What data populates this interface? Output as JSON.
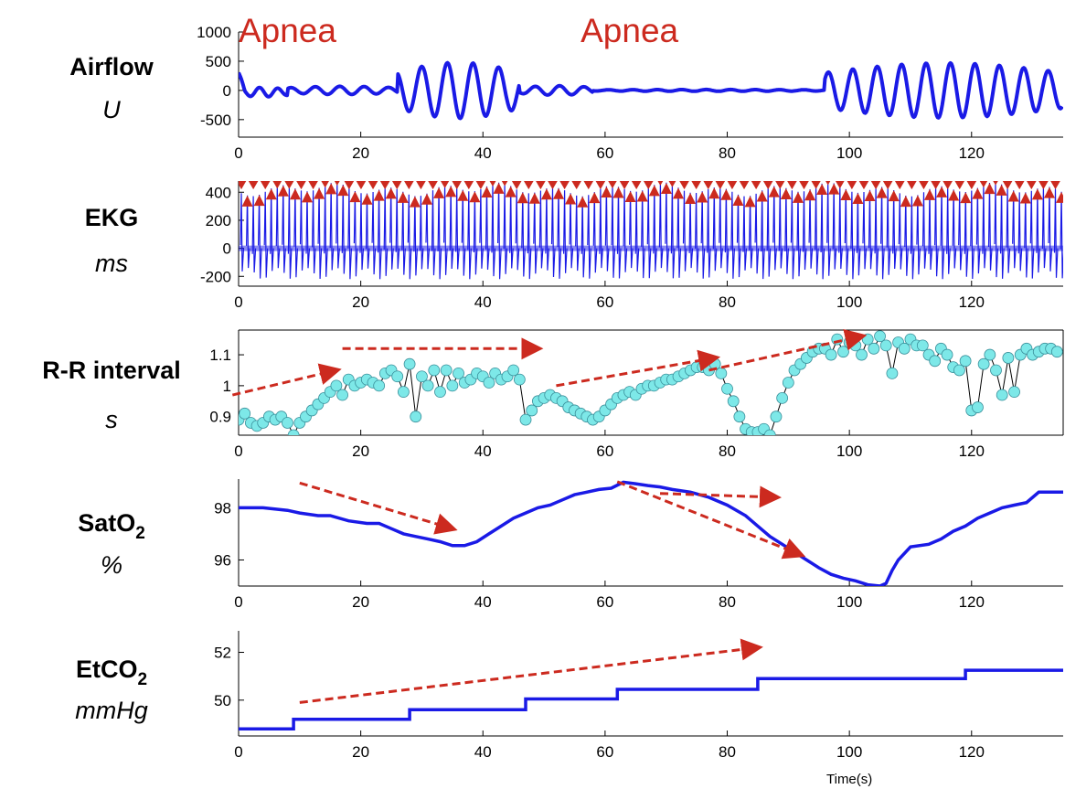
{
  "annotations": [
    {
      "text": "Apnea",
      "x": 8
    },
    {
      "text": "Apnea",
      "x": 64
    }
  ],
  "colors": {
    "signal": "#1a1ae6",
    "trend": "#cc2a1f",
    "marker": "#cc2a1f",
    "point_fill": "#7de8e8",
    "axis": "#000000"
  },
  "chart_data": [
    {
      "type": "line",
      "title": "",
      "label": "Airflow",
      "unit": "U",
      "xlim": [
        0,
        135
      ],
      "ylim": [
        -800,
        1000
      ],
      "xticks": [
        "0",
        "20",
        "40",
        "60",
        "80",
        "100",
        "120"
      ],
      "yticks": [
        "1000",
        "500",
        "0",
        "-500"
      ],
      "ytick_values": [
        1000,
        500,
        0,
        -500
      ],
      "series": [
        {
          "segments": [
            {
              "x": [
                0,
                8
              ],
              "amp": 80,
              "period": 3.0,
              "offset": -30
            },
            {
              "x": [
                8,
                26
              ],
              "amp": 70,
              "period": 4.0,
              "offset": 0
            },
            {
              "x": [
                26,
                46
              ],
              "amp": 480,
              "period": 4.2,
              "offset": 0
            },
            {
              "x": [
                46,
                58
              ],
              "amp": 80,
              "period": 4.0,
              "offset": 0
            },
            {
              "x": [
                58,
                96
              ],
              "amp": 15,
              "period": 4.0,
              "offset": 0
            },
            {
              "x": [
                96,
                135
              ],
              "amp": 470,
              "period": 4.0,
              "offset": 0
            }
          ]
        }
      ],
      "trend_arrows": []
    },
    {
      "type": "line",
      "title": "",
      "label": "EKG",
      "unit": "ms",
      "xlim": [
        0,
        135
      ],
      "ylim": [
        -270,
        480
      ],
      "xticks": [
        "0",
        "20",
        "40",
        "60",
        "80",
        "100",
        "120"
      ],
      "yticks": [
        "400",
        "200",
        "0",
        "-200"
      ],
      "ytick_values": [
        400,
        200,
        0,
        -200
      ],
      "series": [
        {
          "r_peak": 420,
          "baseline": 0,
          "trough": -180,
          "beat_interval": 0.98
        }
      ],
      "markers": {
        "up": 380,
        "down": 460
      },
      "trend_arrows": []
    },
    {
      "type": "scatter",
      "title": "",
      "label": "R-R interval",
      "unit": "s",
      "xlim": [
        0,
        135
      ],
      "ylim": [
        0.84,
        1.18
      ],
      "xticks": [
        "0",
        "20",
        "40",
        "60",
        "80",
        "100",
        "120"
      ],
      "yticks": [
        "1.1",
        "1",
        "0.9"
      ],
      "ytick_values": [
        1.1,
        1.0,
        0.9
      ],
      "series": [
        {
          "x": [
            0,
            1,
            2,
            3,
            4,
            5,
            6,
            7,
            8,
            9,
            10,
            11,
            12,
            13,
            14,
            15,
            16,
            17,
            18,
            19,
            20,
            21,
            22,
            23,
            24,
            25,
            26,
            27,
            28,
            29,
            30,
            31,
            32,
            33,
            34,
            35,
            36,
            37,
            38,
            39,
            40,
            41,
            42,
            43,
            44,
            45,
            46,
            47,
            48,
            49,
            50,
            51,
            52,
            53,
            54,
            55,
            56,
            57,
            58,
            59,
            60,
            61,
            62,
            63,
            64,
            65,
            66,
            67,
            68,
            69,
            70,
            71,
            72,
            73,
            74,
            75,
            76,
            77,
            78,
            79,
            80,
            81,
            82,
            83,
            84,
            85,
            86,
            87,
            88,
            89,
            90,
            91,
            92,
            93,
            94,
            95,
            96,
            97,
            98,
            99,
            100,
            101,
            102,
            103,
            104,
            105,
            106,
            107,
            108,
            109,
            110,
            111,
            112,
            113,
            114,
            115,
            116,
            117,
            118,
            119,
            120,
            121,
            122,
            123,
            124,
            125,
            126,
            127,
            128,
            129,
            130,
            131,
            132,
            133,
            134
          ],
          "y": [
            0.89,
            0.91,
            0.88,
            0.87,
            0.88,
            0.9,
            0.89,
            0.9,
            0.88,
            0.84,
            0.88,
            0.9,
            0.92,
            0.94,
            0.96,
            0.98,
            1.0,
            0.97,
            1.02,
            1.0,
            1.01,
            1.02,
            1.01,
            1.0,
            1.04,
            1.05,
            1.03,
            0.98,
            1.07,
            0.9,
            1.03,
            1.0,
            1.05,
            0.98,
            1.05,
            1.0,
            1.04,
            1.01,
            1.02,
            1.04,
            1.03,
            1.01,
            1.04,
            1.02,
            1.03,
            1.05,
            1.02,
            0.89,
            0.92,
            0.95,
            0.96,
            0.97,
            0.96,
            0.95,
            0.93,
            0.92,
            0.91,
            0.9,
            0.89,
            0.9,
            0.92,
            0.94,
            0.96,
            0.97,
            0.98,
            0.97,
            0.99,
            1.0,
            1.0,
            1.01,
            1.02,
            1.02,
            1.03,
            1.04,
            1.05,
            1.06,
            1.06,
            1.05,
            1.07,
            1.04,
            0.99,
            0.95,
            0.9,
            0.86,
            0.85,
            0.85,
            0.86,
            0.84,
            0.9,
            0.96,
            1.01,
            1.05,
            1.07,
            1.09,
            1.11,
            1.12,
            1.12,
            1.1,
            1.15,
            1.11,
            1.14,
            1.13,
            1.1,
            1.15,
            1.12,
            1.16,
            1.13,
            1.04,
            1.14,
            1.12,
            1.15,
            1.13,
            1.13,
            1.1,
            1.08,
            1.12,
            1.1,
            1.06,
            1.05,
            1.08,
            0.92,
            0.93,
            1.07,
            1.1,
            1.05,
            0.97,
            1.09,
            0.98,
            1.1,
            1.12,
            1.1,
            1.11,
            1.12,
            1.12,
            1.11
          ]
        }
      ],
      "trend_arrows": [
        {
          "from": [
            -1,
            0.97
          ],
          "to": [
            16,
            1.05
          ]
        },
        {
          "from": [
            17,
            1.12
          ],
          "to": [
            49,
            1.12
          ]
        },
        {
          "from": [
            52,
            1.0
          ],
          "to": [
            78,
            1.09
          ]
        },
        {
          "from": [
            77,
            1.05
          ],
          "to": [
            102,
            1.16
          ]
        }
      ]
    },
    {
      "type": "line",
      "title": "",
      "label": "SatO2",
      "label_base": "SatO",
      "label_sub": "2",
      "unit": "%",
      "xlim": [
        0,
        135
      ],
      "ylim": [
        95,
        99.1
      ],
      "xticks": [
        "0",
        "20",
        "40",
        "60",
        "80",
        "100",
        "120"
      ],
      "yticks": [
        "98",
        "96"
      ],
      "ytick_values": [
        98,
        96
      ],
      "series": [
        {
          "x": [
            0,
            4,
            8,
            10,
            13,
            15,
            18,
            21,
            23,
            25,
            27,
            29,
            31,
            33,
            35,
            37,
            39,
            41,
            43,
            45,
            47,
            49,
            51,
            53,
            55,
            57,
            59,
            61,
            63,
            65,
            67,
            69,
            71,
            74,
            77,
            80,
            83,
            85,
            87,
            89,
            91,
            93,
            95,
            97,
            99,
            101,
            103,
            105,
            106,
            107,
            108,
            110,
            113,
            115,
            117,
            119,
            121,
            123,
            125,
            127,
            129,
            131,
            135
          ],
          "y": [
            98,
            98,
            97.9,
            97.8,
            97.7,
            97.7,
            97.5,
            97.4,
            97.4,
            97.2,
            97,
            96.9,
            96.8,
            96.7,
            96.55,
            96.55,
            96.7,
            97.0,
            97.3,
            97.6,
            97.8,
            98.0,
            98.1,
            98.3,
            98.5,
            98.6,
            98.7,
            98.75,
            98.98,
            98.92,
            98.85,
            98.8,
            98.7,
            98.6,
            98.4,
            98.1,
            97.7,
            97.3,
            96.9,
            96.6,
            96.3,
            96.0,
            95.7,
            95.45,
            95.3,
            95.2,
            95.05,
            95.0,
            95.1,
            95.6,
            96.0,
            96.5,
            96.6,
            96.8,
            97.1,
            97.3,
            97.6,
            97.8,
            98.0,
            98.1,
            98.2,
            98.6,
            98.6
          ]
        }
      ],
      "trend_arrows": [
        {
          "from": [
            10,
            98.95
          ],
          "to": [
            35,
            97.2
          ]
        },
        {
          "from": [
            62,
            99
          ],
          "to": [
            92,
            96.2
          ]
        },
        {
          "from": [
            69,
            98.55
          ],
          "to": [
            88,
            98.4
          ]
        }
      ]
    },
    {
      "type": "line",
      "title": "",
      "label": "EtCO2",
      "label_base": "EtCO",
      "label_sub": "2",
      "unit": "mmHg",
      "xlabel": "Time(s)",
      "xlim": [
        0,
        135
      ],
      "ylim": [
        48.5,
        52.9
      ],
      "xticks": [
        "0",
        "20",
        "40",
        "60",
        "80",
        "100",
        "120"
      ],
      "yticks": [
        "52",
        "50"
      ],
      "ytick_values": [
        52,
        50
      ],
      "series": [
        {
          "x": [
            0,
            9,
            9,
            28,
            28,
            47,
            47,
            62,
            62,
            85,
            85,
            119,
            119,
            135
          ],
          "y": [
            48.8,
            48.8,
            49.2,
            49.2,
            49.6,
            49.6,
            50.05,
            50.05,
            50.45,
            50.45,
            50.9,
            50.9,
            51.25,
            51.25
          ]
        }
      ],
      "trend_arrows": [
        {
          "from": [
            10,
            49.9
          ],
          "to": [
            85,
            52.2
          ]
        }
      ]
    }
  ]
}
